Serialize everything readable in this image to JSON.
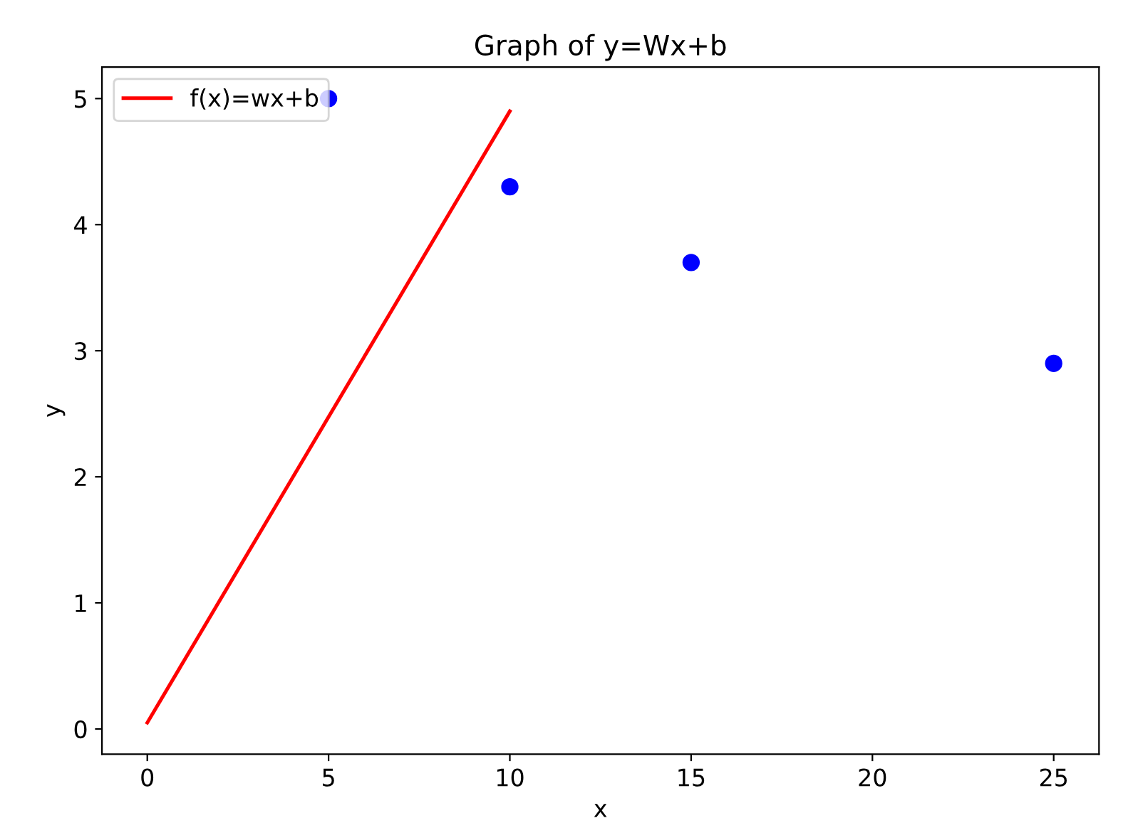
{
  "chart_data": {
    "type": "scatter",
    "title": "Graph of y=Wx+b",
    "xlabel": "x",
    "ylabel": "y",
    "series": [
      {
        "color": "#0000ff",
        "x": [
          5,
          10,
          15,
          25
        ],
        "values": [
          5.0,
          4.3,
          3.7,
          2.9
        ],
        "marker": "circle"
      },
      {
        "type": "line",
        "name": "f(x)=wx+b",
        "color": "#ff0000",
        "x": [
          0,
          10
        ],
        "values": [
          0.05,
          4.9
        ],
        "marker": "none",
        "line_style": "solid"
      }
    ],
    "xlim": [
      -1.25,
      26.25
    ],
    "xticks": [
      0,
      5,
      10,
      15,
      20,
      25
    ],
    "ylim": [
      -0.2,
      5.25
    ],
    "yticks": [
      0,
      1,
      2,
      3,
      4,
      5
    ],
    "grid": false,
    "legend": "top left"
  }
}
